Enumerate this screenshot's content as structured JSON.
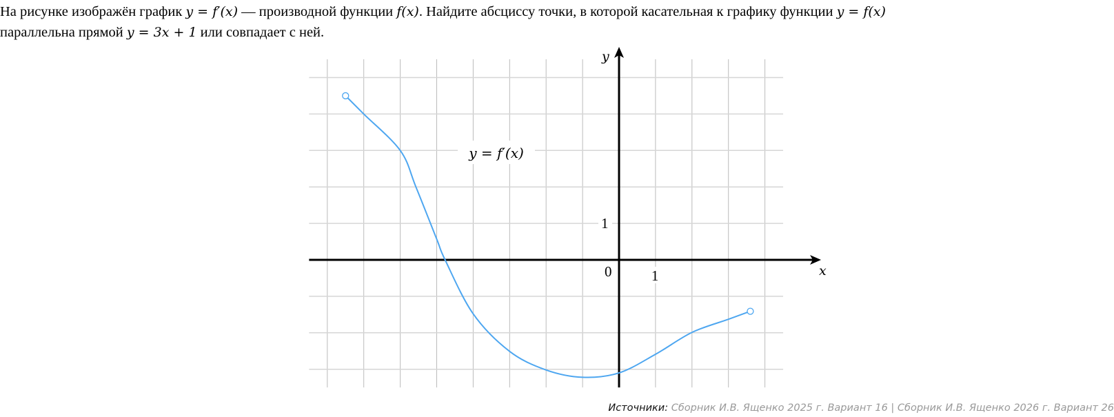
{
  "problem": {
    "text_1": "На рисунке изображён график ",
    "math_1": "y = f′(x)",
    "text_2": " — производной функции ",
    "math_2": "f(x)",
    "text_3": ". Найдите абсциссу точки, в которой касательная к графику функции ",
    "math_3": "y = f(x)",
    "text_4": " параллельна прямой ",
    "math_4": "y = 3x + 1",
    "text_5": " или совпадает с ней."
  },
  "chart_data": {
    "type": "line",
    "title": "",
    "xlabel": "x",
    "ylabel": "y",
    "curve_label": "y = f′(x)",
    "xlim": [
      -8.5,
      4.5
    ],
    "ylim": [
      -3.5,
      5.5
    ],
    "grid": true,
    "tick_labels": {
      "origin": "0",
      "x_unit": "1",
      "y_unit": "1"
    },
    "endpoints": "open",
    "curve_color": "#4da6f0",
    "points": [
      [
        -7.5,
        4.5
      ],
      [
        -7,
        4.0
      ],
      [
        -6,
        3.0
      ],
      [
        -5.57,
        2.0
      ],
      [
        -5,
        0.57
      ],
      [
        -4.77,
        0
      ],
      [
        -4,
        -1.48
      ],
      [
        -3,
        -2.51
      ],
      [
        -2,
        -3.02
      ],
      [
        -1,
        -3.22
      ],
      [
        0,
        -3.1
      ],
      [
        1,
        -2.59
      ],
      [
        2,
        -1.99
      ],
      [
        3,
        -1.63
      ],
      [
        3.6,
        -1.41
      ]
    ]
  },
  "sources": {
    "label": "Источники:",
    "text": "Сборник И.В. Ященко 2025 г. Вариант 16 | Сборник И.В. Ященко 2026 г. Вариант 26"
  }
}
